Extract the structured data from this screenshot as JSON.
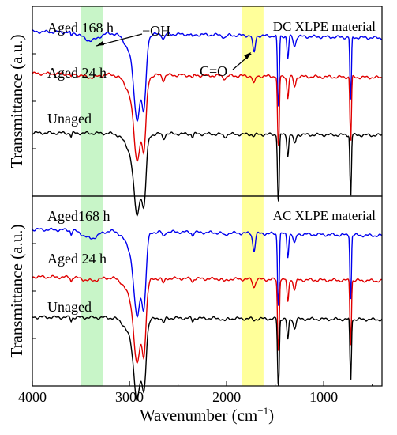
{
  "chart_data": {
    "type": "line",
    "xlabel": "Wavenumber (cm",
    "xlabel_sup": "−1",
    "xlabel_close": ")",
    "ylabel": "Transmittance (a.u.)",
    "xlim": [
      4000,
      400
    ],
    "x_reversed": true,
    "x_ticks": [
      4000,
      3000,
      2000,
      1000
    ],
    "highlight_bands": [
      {
        "from": 3500,
        "to": 3270,
        "color": "#c8f5c8"
      },
      {
        "from": 1840,
        "to": 1620,
        "color": "#ffff9a"
      }
    ],
    "series_colors": {
      "aged_168h": "#0000ee",
      "aged_24h": "#e00000",
      "unaged": "#000000"
    },
    "panels": [
      {
        "id": "top",
        "title": "DC XLPE material",
        "series": [
          {
            "label": "Aged 168 h",
            "color": "#0000ee",
            "offset": 0.0
          },
          {
            "label": "Aged 24 h",
            "color": "#e00000",
            "offset": 1.0
          },
          {
            "label": "Unaged",
            "color": "#000000",
            "offset": 2.0
          }
        ],
        "annotations": [
          {
            "text": "−OH",
            "x": 3390
          },
          {
            "text": "C=O",
            "x": 1715
          }
        ]
      },
      {
        "id": "bottom",
        "title": "AC XLPE material",
        "series": [
          {
            "label": "Aged168 h",
            "color": "#0000ee",
            "offset": 0.0
          },
          {
            "label": "Aged 24 h",
            "color": "#e00000",
            "offset": 1.0
          },
          {
            "label": "Unaged",
            "color": "#000000",
            "offset": 2.0
          }
        ],
        "annotations": []
      }
    ]
  }
}
